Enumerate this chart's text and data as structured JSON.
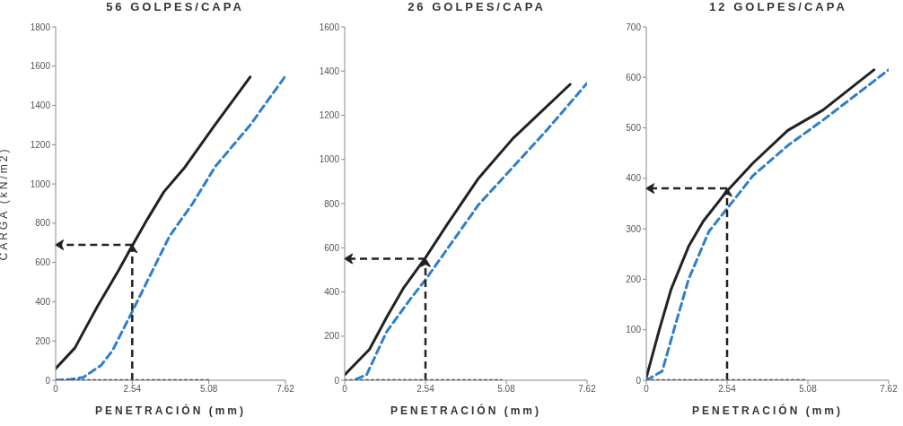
{
  "chart_data": [
    {
      "type": "line",
      "title": "56 GOLPES/CAPA",
      "xlabel": "PENETRACIÓN (mm)",
      "ylabel": "CARGA (kN/m2)",
      "xlim": [
        0,
        7.62
      ],
      "xticks": [
        0,
        2.54,
        5.08,
        7.62
      ],
      "ylim": [
        0,
        1800
      ],
      "yticks": [
        0,
        200,
        400,
        600,
        800,
        1000,
        1200,
        1400,
        1600,
        1800
      ],
      "series": [
        {
          "color": "#222222",
          "line_style": "solid",
          "x": [
            0,
            0.64,
            0.92,
            1.4,
            2.07,
            2.54,
            3.02,
            3.59,
            4.26,
            5.21,
            6.45
          ],
          "values": [
            60,
            165,
            245,
            380,
            555,
            685,
            815,
            960,
            1080,
            1285,
            1545
          ]
        },
        {
          "color": "#2f7fc8",
          "line_style": "dashed",
          "x": [
            0,
            0.5,
            0.92,
            1.5,
            1.88,
            2.54,
            3.2,
            3.78,
            4.54,
            5.3,
            6.45,
            7.62
          ],
          "values": [
            0,
            5,
            15,
            75,
            150,
            350,
            555,
            735,
            900,
            1090,
            1300,
            1550
          ]
        },
        {
          "color": "#222222",
          "line_style": "dotted",
          "x": [
            0,
            5.08
          ],
          "values": [
            0,
            0
          ]
        }
      ],
      "ref_lines": [
        {
          "axis": "x",
          "value": 2.54,
          "color": "#222222",
          "line_style": "dashed"
        },
        {
          "axis": "y",
          "value": 690,
          "color": "#222222",
          "line_style": "dashed"
        }
      ]
    },
    {
      "type": "line",
      "title": "26 GOLPES/CAPA",
      "xlabel": "PENETRACIÓN (mm)",
      "xlim": [
        0,
        7.62
      ],
      "xticks": [
        0,
        2.54,
        5.08,
        7.62
      ],
      "ylim": [
        0,
        1600
      ],
      "yticks": [
        0,
        200,
        400,
        600,
        800,
        1000,
        1200,
        1400,
        1600
      ],
      "series": [
        {
          "color": "#222222",
          "line_style": "solid",
          "x": [
            0,
            0.78,
            1.32,
            1.86,
            2.54,
            3.22,
            4.21,
            5.29,
            7.09
          ],
          "values": [
            25,
            140,
            285,
            420,
            555,
            705,
            915,
            1095,
            1340
          ]
        },
        {
          "color": "#2f7fc8",
          "line_style": "dashed",
          "x": [
            0.36,
            0.69,
            1.32,
            2.05,
            2.54,
            3.3,
            4.21,
            5.29,
            6.37,
            7.62
          ],
          "values": [
            5,
            25,
            220,
            365,
            455,
            610,
            795,
            965,
            1135,
            1345
          ]
        },
        {
          "color": "#222222",
          "line_style": "dotted",
          "x": [
            0,
            4.93
          ],
          "values": [
            0,
            0
          ]
        }
      ],
      "ref_lines": [
        {
          "axis": "x",
          "value": 2.54,
          "color": "#222222",
          "line_style": "dashed"
        },
        {
          "axis": "y",
          "value": 550,
          "color": "#222222",
          "line_style": "dashed"
        }
      ]
    },
    {
      "type": "line",
      "title": "12 GOLPES/CAPA",
      "xlabel": "PENETRACIÓN (mm)",
      "xlim": [
        0,
        7.62
      ],
      "xticks": [
        0,
        2.54,
        5.08,
        7.62
      ],
      "ylim": [
        0,
        700
      ],
      "yticks": [
        0,
        100,
        200,
        300,
        400,
        500,
        600,
        700
      ],
      "series": [
        {
          "color": "#222222",
          "line_style": "solid",
          "x": [
            0,
            0.41,
            0.78,
            1.33,
            1.79,
            2.54,
            3.35,
            4.45,
            5.55,
            7.16
          ],
          "values": [
            5,
            100,
            180,
            265,
            315,
            375,
            430,
            495,
            535,
            615
          ]
        },
        {
          "color": "#2f7fc8",
          "line_style": "dashed",
          "x": [
            0,
            0.5,
            0.87,
            1.33,
            1.97,
            2.54,
            3.35,
            4.45,
            5.55,
            7.62
          ],
          "values": [
            0,
            18,
            100,
            200,
            295,
            340,
            405,
            465,
            515,
            615
          ]
        },
        {
          "color": "#222222",
          "line_style": "dotted",
          "x": [
            0,
            5.05
          ],
          "values": [
            0,
            0
          ]
        }
      ],
      "ref_lines": [
        {
          "axis": "x",
          "value": 2.54,
          "color": "#222222",
          "line_style": "dashed"
        },
        {
          "axis": "y",
          "value": 380,
          "color": "#222222",
          "line_style": "dashed"
        }
      ]
    }
  ]
}
